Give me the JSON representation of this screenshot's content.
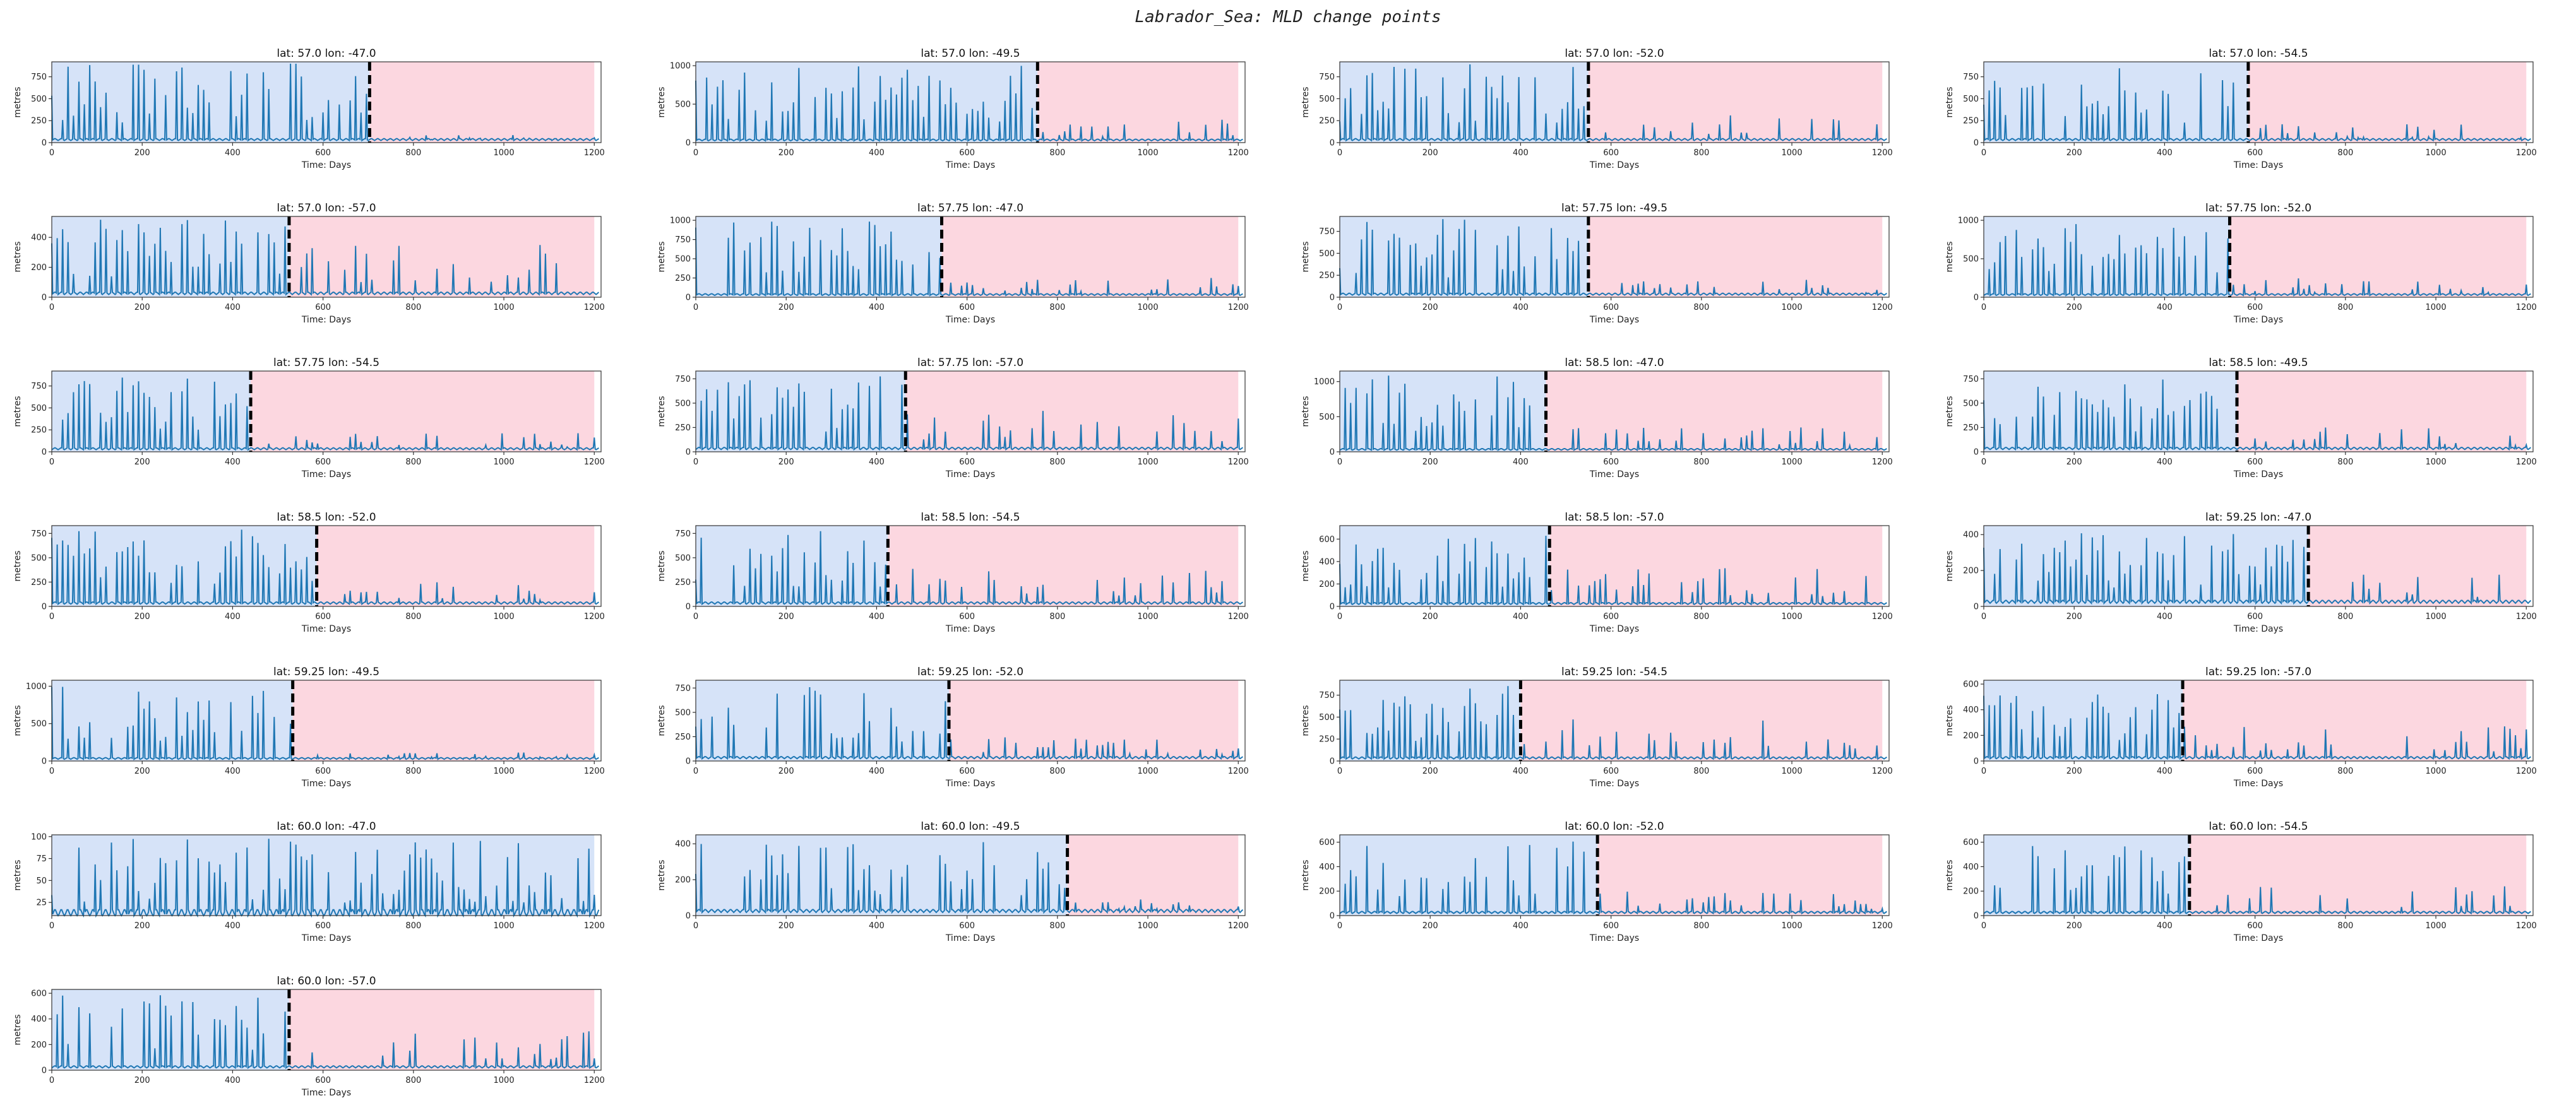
{
  "title": "Labrador_Sea: MLD change points",
  "colors": {
    "line": "#1f77b4",
    "before_region": "#d6e3f8",
    "after_region": "#fcd7e0",
    "change_line": "#000000",
    "axes": "#333333"
  },
  "chart_data": [
    {
      "type": "line",
      "title": "lat: 57.0 lon: -47.0",
      "xlabel": "Time: Days",
      "ylabel": "metres",
      "xlim": [
        0,
        1215
      ],
      "xticks": [
        0,
        200,
        400,
        600,
        800,
        1000,
        1200
      ],
      "ylim": [
        0,
        920
      ],
      "yticks": [
        0,
        250,
        500,
        750
      ],
      "change_point": 703,
      "series_peak": 900,
      "base": 40,
      "after_peak": 90
    },
    {
      "type": "line",
      "title": "lat: 57.0 lon: -49.5",
      "xlabel": "Time: Days",
      "ylabel": "metres",
      "xlim": [
        0,
        1215
      ],
      "xticks": [
        0,
        200,
        400,
        600,
        800,
        1000,
        1200
      ],
      "ylim": [
        0,
        1050
      ],
      "yticks": [
        0,
        500,
        1000
      ],
      "change_point": 756,
      "series_peak": 1000,
      "base": 40,
      "after_peak": 300
    },
    {
      "type": "line",
      "title": "lat: 57.0 lon: -52.0",
      "xlabel": "Time: Days",
      "ylabel": "metres",
      "xlim": [
        0,
        1215
      ],
      "xticks": [
        0,
        200,
        400,
        600,
        800,
        1000,
        1200
      ],
      "ylim": [
        0,
        920
      ],
      "yticks": [
        0,
        250,
        500,
        750
      ],
      "change_point": 550,
      "series_peak": 900,
      "base": 40,
      "after_peak": 330
    },
    {
      "type": "line",
      "title": "lat: 57.0 lon: -54.5",
      "xlabel": "Time: Days",
      "ylabel": "metres",
      "xlim": [
        0,
        1215
      ],
      "xticks": [
        0,
        200,
        400,
        600,
        800,
        1000,
        1200
      ],
      "ylim": [
        0,
        920
      ],
      "yticks": [
        0,
        250,
        500,
        750
      ],
      "change_point": 585,
      "series_peak": 900,
      "base": 40,
      "after_peak": 220
    },
    {
      "type": "line",
      "title": "lat: 57.0 lon: -57.0",
      "xlabel": "Time: Days",
      "ylabel": "metres",
      "xlim": [
        0,
        1215
      ],
      "xticks": [
        0,
        200,
        400,
        600,
        800,
        1000,
        1200
      ],
      "ylim": [
        0,
        540
      ],
      "yticks": [
        0,
        200,
        400
      ],
      "change_point": 525,
      "series_peak": 520,
      "base": 30,
      "after_peak": 350
    },
    {
      "type": "line",
      "title": "lat: 57.75 lon: -47.0",
      "xlabel": "Time: Days",
      "ylabel": "metres",
      "xlim": [
        0,
        1215
      ],
      "xticks": [
        0,
        200,
        400,
        600,
        800,
        1000,
        1200
      ],
      "ylim": [
        0,
        1050
      ],
      "yticks": [
        0,
        250,
        500,
        750,
        1000
      ],
      "change_point": 544,
      "series_peak": 1000,
      "base": 40,
      "after_peak": 250
    },
    {
      "type": "line",
      "title": "lat: 57.75 lon: -49.5",
      "xlabel": "Time: Days",
      "ylabel": "metres",
      "xlim": [
        0,
        1215
      ],
      "xticks": [
        0,
        200,
        400,
        600,
        800,
        1000,
        1200
      ],
      "ylim": [
        0,
        920
      ],
      "yticks": [
        0,
        250,
        500,
        750
      ],
      "change_point": 550,
      "series_peak": 900,
      "base": 40,
      "after_peak": 200
    },
    {
      "type": "line",
      "title": "lat: 57.75 lon: -52.0",
      "xlabel": "Time: Days",
      "ylabel": "metres",
      "xlim": [
        0,
        1215
      ],
      "xticks": [
        0,
        200,
        400,
        600,
        800,
        1000,
        1200
      ],
      "ylim": [
        0,
        1050
      ],
      "yticks": [
        0,
        500,
        1000
      ],
      "change_point": 544,
      "series_peak": 1000,
      "base": 40,
      "after_peak": 250
    },
    {
      "type": "line",
      "title": "lat: 57.75 lon: -54.5",
      "xlabel": "Time: Days",
      "ylabel": "metres",
      "xlim": [
        0,
        1215
      ],
      "xticks": [
        0,
        200,
        400,
        600,
        800,
        1000,
        1200
      ],
      "ylim": [
        0,
        920
      ],
      "yticks": [
        0,
        250,
        500,
        750
      ],
      "change_point": 440,
      "series_peak": 900,
      "base": 40,
      "after_peak": 220
    },
    {
      "type": "line",
      "title": "lat: 57.75 lon: -57.0",
      "xlabel": "Time: Days",
      "ylabel": "metres",
      "xlim": [
        0,
        1215
      ],
      "xticks": [
        0,
        200,
        400,
        600,
        800,
        1000,
        1200
      ],
      "ylim": [
        0,
        830
      ],
      "yticks": [
        0,
        250,
        500,
        750
      ],
      "change_point": 464,
      "series_peak": 780,
      "base": 40,
      "after_peak": 430
    },
    {
      "type": "line",
      "title": "lat: 58.5 lon: -47.0",
      "xlabel": "Time: Days",
      "ylabel": "metres",
      "xlim": [
        0,
        1215
      ],
      "xticks": [
        0,
        200,
        400,
        600,
        800,
        1000,
        1200
      ],
      "ylim": [
        0,
        1150
      ],
      "yticks": [
        0,
        500,
        1000
      ],
      "change_point": 456,
      "series_peak": 1100,
      "base": 40,
      "after_peak": 350
    },
    {
      "type": "line",
      "title": "lat: 58.5 lon: -49.5",
      "xlabel": "Time: Days",
      "ylabel": "metres",
      "xlim": [
        0,
        1215
      ],
      "xticks": [
        0,
        200,
        400,
        600,
        800,
        1000,
        1200
      ],
      "ylim": [
        0,
        830
      ],
      "yticks": [
        0,
        250,
        500,
        750
      ],
      "change_point": 560,
      "series_peak": 780,
      "base": 40,
      "after_peak": 250
    },
    {
      "type": "line",
      "title": "lat: 58.5 lon: -52.0",
      "xlabel": "Time: Days",
      "ylabel": "metres",
      "xlim": [
        0,
        1215
      ],
      "xticks": [
        0,
        200,
        400,
        600,
        800,
        1000,
        1200
      ],
      "ylim": [
        0,
        830
      ],
      "yticks": [
        0,
        250,
        500,
        750
      ],
      "change_point": 586,
      "series_peak": 790,
      "base": 40,
      "after_peak": 250
    },
    {
      "type": "line",
      "title": "lat: 58.5 lon: -54.5",
      "xlabel": "Time: Days",
      "ylabel": "metres",
      "xlim": [
        0,
        1215
      ],
      "xticks": [
        0,
        200,
        400,
        600,
        800,
        1000,
        1200
      ],
      "ylim": [
        0,
        830
      ],
      "yticks": [
        0,
        250,
        500,
        750
      ],
      "change_point": 425,
      "series_peak": 780,
      "base": 40,
      "after_peak": 420
    },
    {
      "type": "line",
      "title": "lat: 58.5 lon: -57.0",
      "xlabel": "Time: Days",
      "ylabel": "metres",
      "xlim": [
        0,
        1215
      ],
      "xticks": [
        0,
        200,
        400,
        600,
        800,
        1000,
        1200
      ],
      "ylim": [
        0,
        720
      ],
      "yticks": [
        0,
        200,
        400,
        600
      ],
      "change_point": 464,
      "series_peak": 670,
      "base": 30,
      "after_peak": 350
    },
    {
      "type": "line",
      "title": "lat: 59.25 lon: -47.0",
      "xlabel": "Time: Days",
      "ylabel": "metres",
      "xlim": [
        0,
        1215
      ],
      "xticks": [
        0,
        200,
        400,
        600,
        800,
        1000,
        1200
      ],
      "ylim": [
        0,
        450
      ],
      "yticks": [
        0,
        200,
        400
      ],
      "change_point": 718,
      "series_peak": 420,
      "base": 30,
      "after_peak": 200
    },
    {
      "type": "line",
      "title": "lat: 59.25 lon: -49.5",
      "xlabel": "Time: Days",
      "ylabel": "metres",
      "xlim": [
        0,
        1215
      ],
      "xticks": [
        0,
        200,
        400,
        600,
        800,
        1000,
        1200
      ],
      "ylim": [
        0,
        1080
      ],
      "yticks": [
        0,
        500,
        1000
      ],
      "change_point": 533,
      "series_peak": 1000,
      "base": 40,
      "after_peak": 120
    },
    {
      "type": "line",
      "title": "lat: 59.25 lon: -52.0",
      "xlabel": "Time: Days",
      "ylabel": "metres",
      "xlim": [
        0,
        1215
      ],
      "xticks": [
        0,
        200,
        400,
        600,
        800,
        1000,
        1200
      ],
      "ylim": [
        0,
        830
      ],
      "yticks": [
        0,
        250,
        500,
        750
      ],
      "change_point": 560,
      "series_peak": 780,
      "base": 40,
      "after_peak": 250
    },
    {
      "type": "line",
      "title": "lat: 59.25 lon: -54.5",
      "xlabel": "Time: Days",
      "ylabel": "metres",
      "xlim": [
        0,
        1215
      ],
      "xticks": [
        0,
        200,
        400,
        600,
        800,
        1000,
        1200
      ],
      "ylim": [
        0,
        920
      ],
      "yticks": [
        0,
        250,
        500,
        750
      ],
      "change_point": 400,
      "series_peak": 880,
      "base": 40,
      "after_peak": 530
    },
    {
      "type": "line",
      "title": "lat: 59.25 lon: -57.0",
      "xlabel": "Time: Days",
      "ylabel": "metres",
      "xlim": [
        0,
        1215
      ],
      "xticks": [
        0,
        200,
        400,
        600,
        800,
        1000,
        1200
      ],
      "ylim": [
        0,
        630
      ],
      "yticks": [
        0,
        200,
        400,
        600
      ],
      "change_point": 440,
      "series_peak": 580,
      "base": 30,
      "after_peak": 280
    },
    {
      "type": "line",
      "title": "lat: 60.0 lon: -47.0",
      "xlabel": "Time: Days",
      "ylabel": "metres",
      "xlim": [
        0,
        1215
      ],
      "xticks": [
        0,
        200,
        400,
        600,
        800,
        1000,
        1200
      ],
      "ylim": [
        10,
        102
      ],
      "yticks": [
        25,
        50,
        75,
        100
      ],
      "change_point": null,
      "series_peak": 98,
      "base": 15,
      "after_peak": 45
    },
    {
      "type": "line",
      "title": "lat: 60.0 lon: -49.5",
      "xlabel": "Time: Days",
      "ylabel": "metres",
      "xlim": [
        0,
        1215
      ],
      "xticks": [
        0,
        200,
        400,
        600,
        800,
        1000,
        1200
      ],
      "ylim": [
        0,
        450
      ],
      "yticks": [
        0,
        200,
        400
      ],
      "change_point": 822,
      "series_peak": 420,
      "base": 30,
      "after_peak": 90
    },
    {
      "type": "line",
      "title": "lat: 60.0 lon: -52.0",
      "xlabel": "Time: Days",
      "ylabel": "metres",
      "xlim": [
        0,
        1215
      ],
      "xticks": [
        0,
        200,
        400,
        600,
        800,
        1000,
        1200
      ],
      "ylim": [
        0,
        660
      ],
      "yticks": [
        0,
        200,
        400,
        600
      ],
      "change_point": 570,
      "series_peak": 620,
      "base": 30,
      "after_peak": 200
    },
    {
      "type": "line",
      "title": "lat: 60.0 lon: -54.5",
      "xlabel": "Time: Days",
      "ylabel": "metres",
      "xlim": [
        0,
        1215
      ],
      "xticks": [
        0,
        200,
        400,
        600,
        800,
        1000,
        1200
      ],
      "ylim": [
        0,
        660
      ],
      "yticks": [
        0,
        200,
        400,
        600
      ],
      "change_point": 455,
      "series_peak": 620,
      "base": 30,
      "after_peak": 240
    },
    {
      "type": "line",
      "title": "lat: 60.0 lon: -57.0",
      "xlabel": "Time: Days",
      "ylabel": "metres",
      "xlim": [
        0,
        1215
      ],
      "xticks": [
        0,
        200,
        400,
        600,
        800,
        1000,
        1200
      ],
      "ylim": [
        0,
        630
      ],
      "yticks": [
        0,
        200,
        400,
        600
      ],
      "change_point": 525,
      "series_peak": 600,
      "base": 30,
      "after_peak": 330
    }
  ]
}
